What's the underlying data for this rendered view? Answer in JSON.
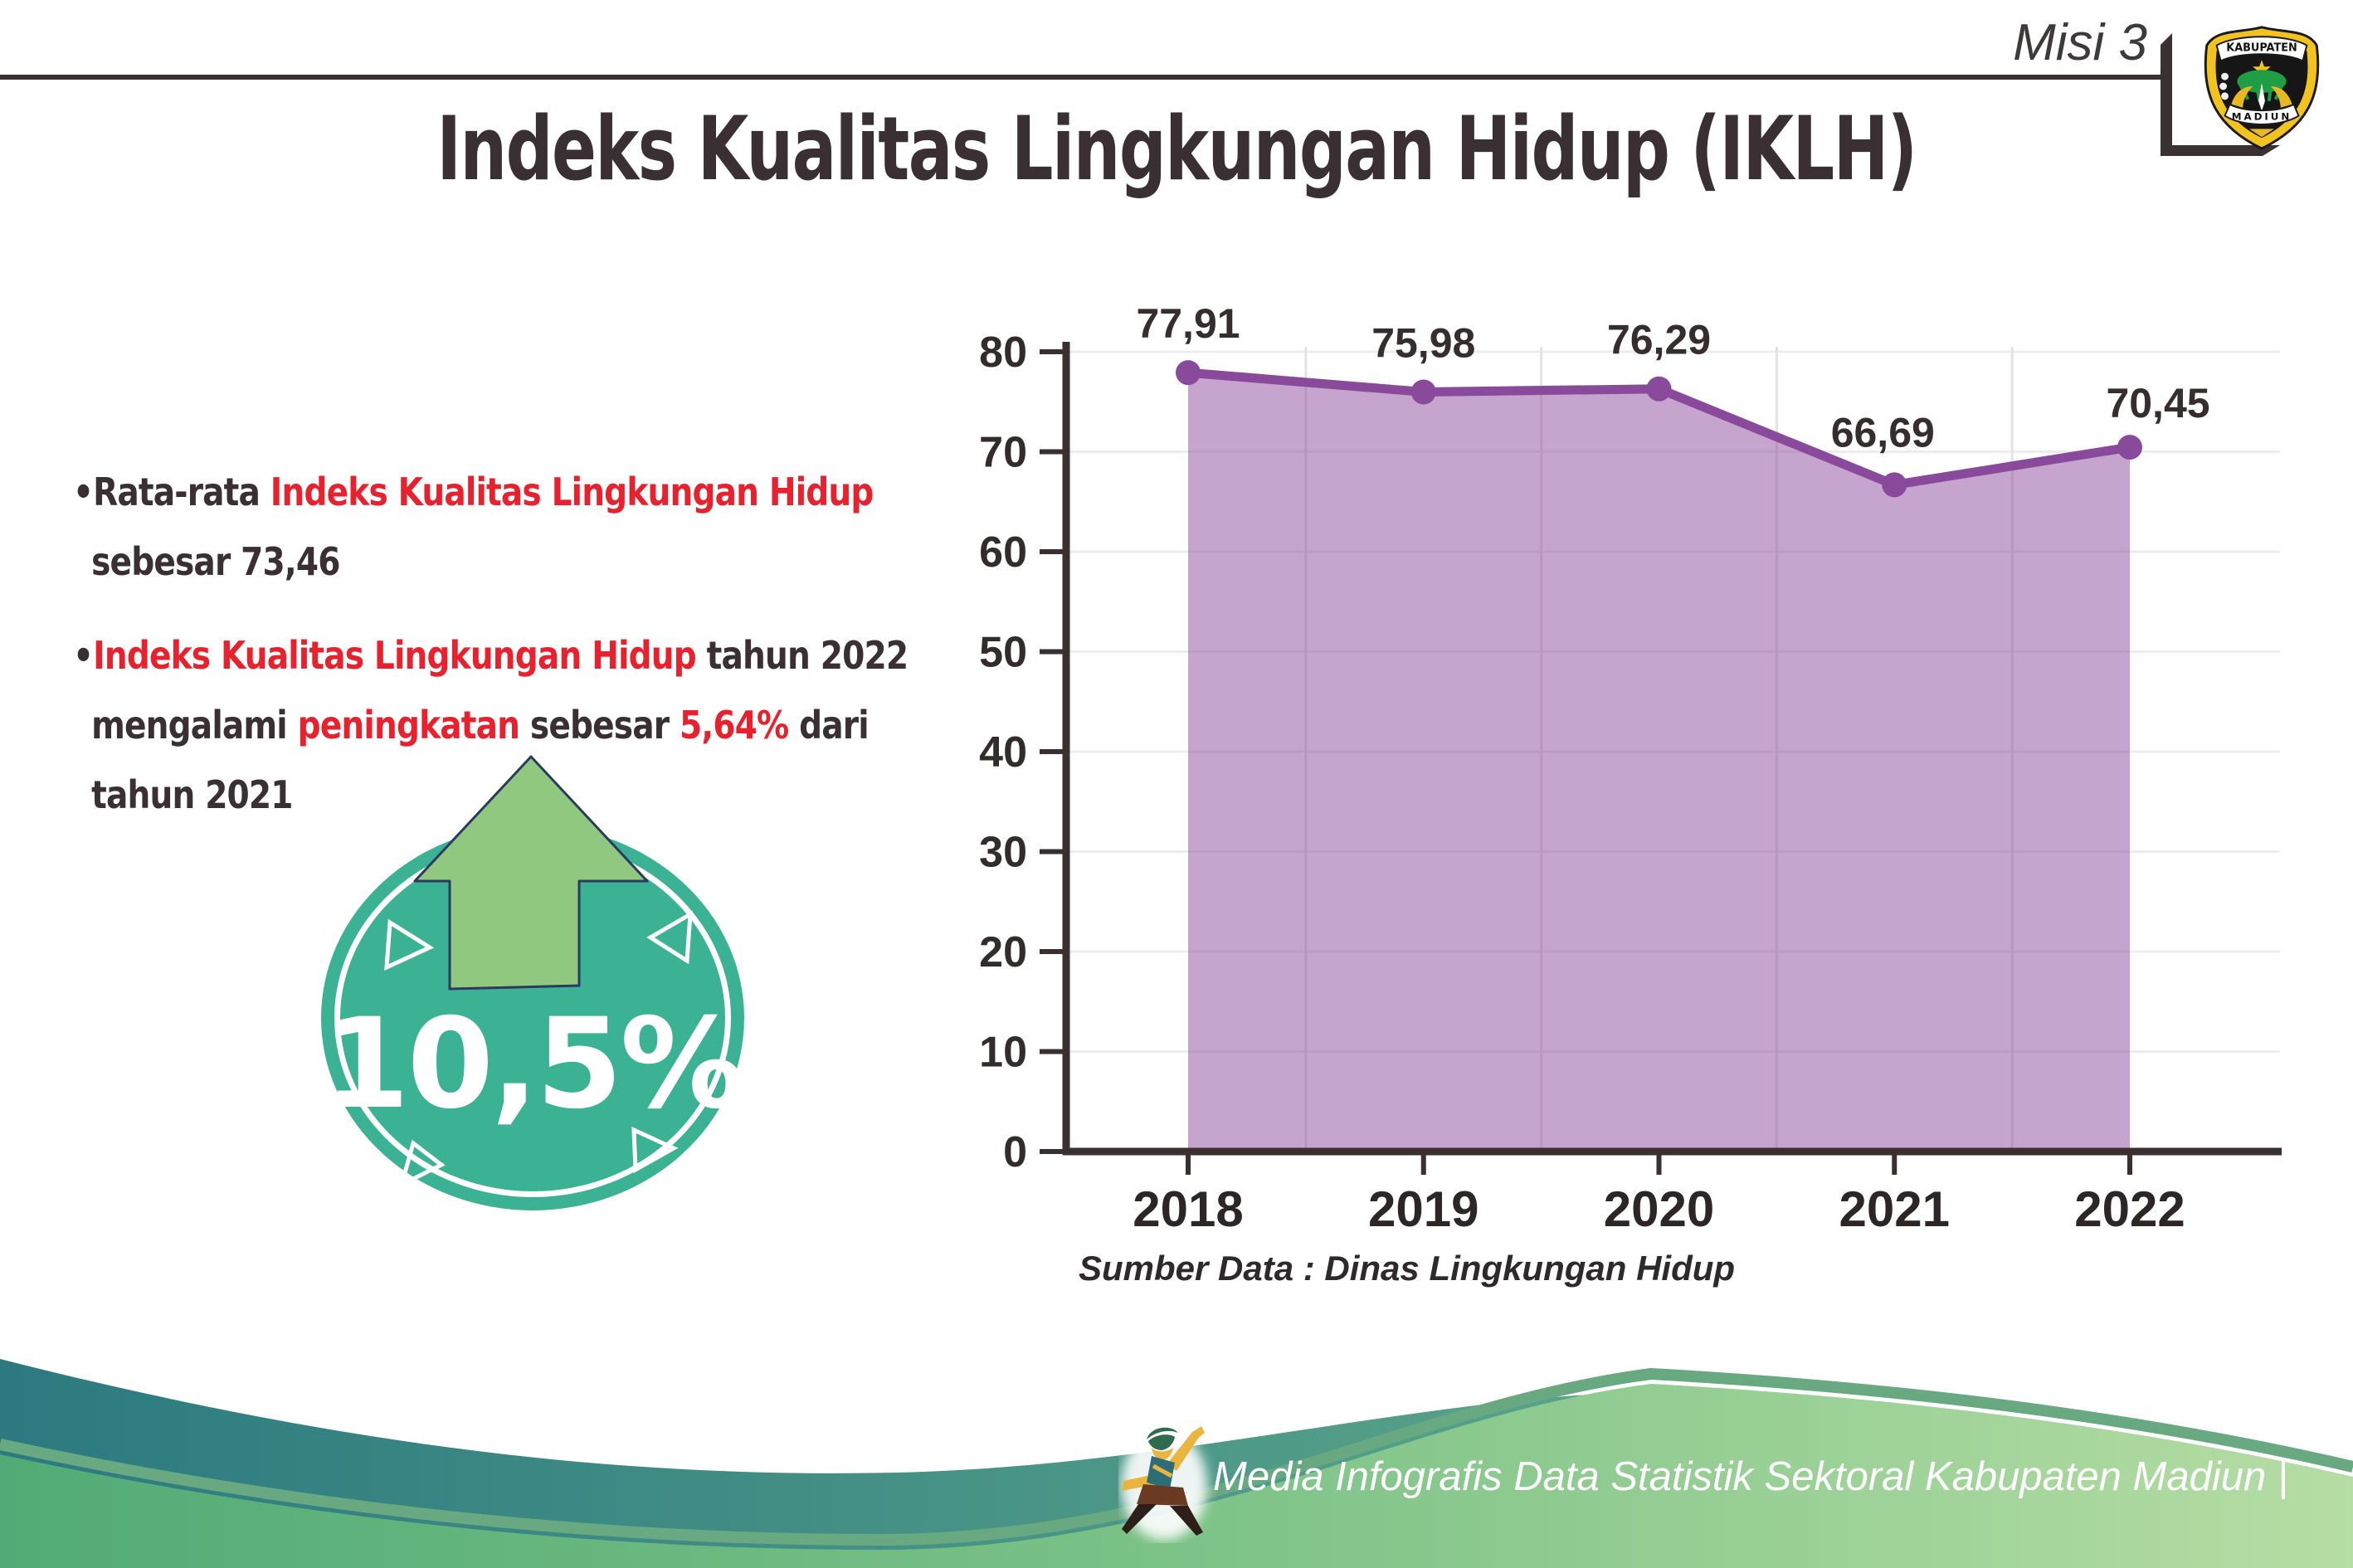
{
  "header": {
    "misi": "Misi 3",
    "title": "Indeks Kualitas Lingkungan Hidup (IKLH)"
  },
  "logo": {
    "top_text": "KABUPATEN",
    "bottom_text": "MADIUN"
  },
  "bullets": [
    {
      "lines": [
        [
          {
            "t": "•Rata-rata ",
            "c": "dark"
          },
          {
            "t": "Indeks Kualitas Lingkungan Hidup",
            "c": "red"
          }
        ],
        [
          {
            "t": "sebesar 73,46",
            "c": "dark"
          }
        ]
      ]
    },
    {
      "lines": [
        [
          {
            "t": "•",
            "c": "dark"
          },
          {
            "t": "Indeks Kualitas Lingkungan Hidup",
            "c": "red"
          },
          {
            "t": " tahun 2022",
            "c": "dark"
          }
        ],
        [
          {
            "t": "mengalami ",
            "c": "dark"
          },
          {
            "t": "peningkatan",
            "c": "red"
          },
          {
            "t": " sebesar ",
            "c": "dark"
          },
          {
            "t": "5,64%",
            "c": "red"
          },
          {
            "t": " dari",
            "c": "dark"
          }
        ],
        [
          {
            "t": "tahun 2021",
            "c": "dark"
          }
        ]
      ]
    }
  ],
  "badge": {
    "value": "10,5%"
  },
  "chart_data": {
    "type": "area",
    "categories": [
      "2018",
      "2019",
      "2020",
      "2021",
      "2022"
    ],
    "values": [
      77.91,
      75.98,
      76.29,
      66.69,
      70.45
    ],
    "value_labels": [
      "77,91",
      "75,98",
      "76,29",
      "66,69",
      "70,45"
    ],
    "title": "",
    "xlabel": "",
    "ylabel": "",
    "ylim": [
      0,
      80
    ],
    "yticks": [
      0,
      10,
      20,
      30,
      40,
      50,
      60,
      70,
      80
    ],
    "grid": true,
    "legend_position": "none",
    "line_color": "#8a4a9b",
    "fill_color": "rgba(139,74,156,0.5)",
    "source_note": "Sumber Data : Dinas Lingkungan Hidup"
  },
  "footer": {
    "text": "Media Infografis Data Statistik Sektoral Kabupaten Madiun |"
  },
  "colors": {
    "accent_red": "#e8212e",
    "text_dark": "#3a3033",
    "badge_teal": "#3bb294",
    "arrow_green": "#8fc87e",
    "arrow_outline": "#2b3a60",
    "chart_purple": "#8a4a9b",
    "wave_teal_left": "#2c7a80",
    "wave_teal_right": "#62ab8c",
    "wave_green_left": "#52ab76",
    "wave_green_right": "#b5dda4"
  }
}
